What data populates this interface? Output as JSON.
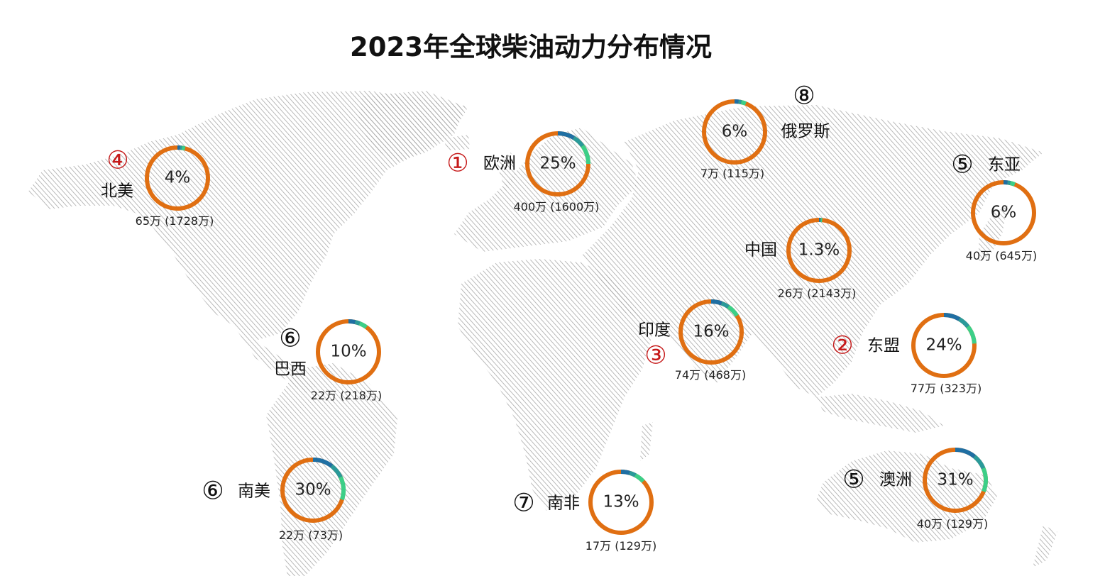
{
  "title": "2023年全球柴油动力分布情况",
  "colors": {
    "land": "#a8a8a8",
    "ring_main": "#e06f12",
    "ring_dark": "#1f6fa3",
    "ring_mid": "#2a9a9a",
    "ring_light": "#3ccf88",
    "rank_highlight": "#c61a1a",
    "text": "#111111"
  },
  "regions": [
    {
      "id": "north-america",
      "rank": "④",
      "rank_highlight": true,
      "name": "北美",
      "pct": "4%",
      "share": 0.04,
      "counts": "65万 (1728万)"
    },
    {
      "id": "europe",
      "rank": "①",
      "rank_highlight": true,
      "name": "欧洲",
      "pct": "25%",
      "share": 0.25,
      "counts": "400万 (1600万)"
    },
    {
      "id": "russia",
      "rank": "⑧",
      "rank_highlight": false,
      "name": "俄罗斯",
      "pct": "6%",
      "share": 0.06,
      "counts": "7万 (115万)"
    },
    {
      "id": "east-asia",
      "rank": "⑤",
      "rank_highlight": false,
      "name": "东亚",
      "pct": "6%",
      "share": 0.06,
      "counts": "40万 (645万)"
    },
    {
      "id": "china",
      "rank": "",
      "rank_highlight": false,
      "name": "中国",
      "pct": "1.3%",
      "share": 0.013,
      "counts": "26万 (2143万)"
    },
    {
      "id": "india",
      "rank": "③",
      "rank_highlight": true,
      "name": "印度",
      "pct": "16%",
      "share": 0.16,
      "counts": "74万 (468万)"
    },
    {
      "id": "asean",
      "rank": "②",
      "rank_highlight": true,
      "name": "东盟",
      "pct": "24%",
      "share": 0.24,
      "counts": "77万 (323万)"
    },
    {
      "id": "brazil",
      "rank": "⑥",
      "rank_highlight": false,
      "name": "巴西",
      "pct": "10%",
      "share": 0.1,
      "counts": "22万 (218万)"
    },
    {
      "id": "south-america",
      "rank": "⑥",
      "rank_highlight": false,
      "name": "南美",
      "pct": "30%",
      "share": 0.3,
      "counts": "22万 (73万)"
    },
    {
      "id": "south-africa",
      "rank": "⑦",
      "rank_highlight": false,
      "name": "南非",
      "pct": "13%",
      "share": 0.13,
      "counts": "17万 (129万)"
    },
    {
      "id": "australia",
      "rank": "⑤",
      "rank_highlight": false,
      "name": "澳洲",
      "pct": "31%",
      "share": 0.31,
      "counts": "40万 (129万)"
    }
  ]
}
